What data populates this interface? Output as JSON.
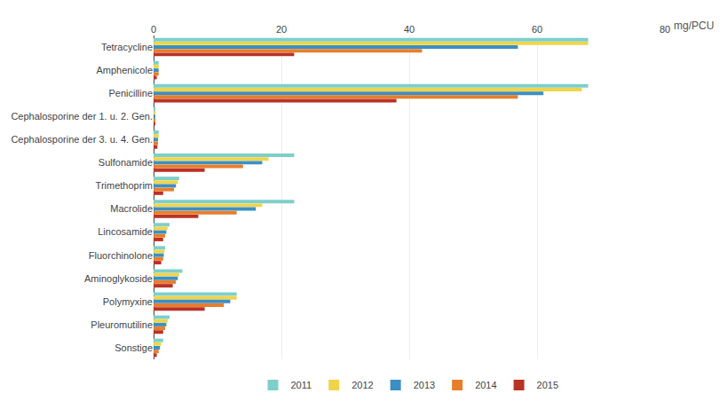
{
  "chart_data": {
    "type": "bar",
    "orientation": "horizontal",
    "xlabel": "mg/PCU",
    "categories": [
      "Tetracycline",
      "Amphenicole",
      "Penicilline",
      "Cephalosporine der 1. u. 2. Gen.",
      "Cephalosporine der 3. u. 4. Gen.",
      "Sulfonamide",
      "Trimethoprim",
      "Macrolide",
      "Lincosamide",
      "Fluorchinolone",
      "Aminoglykoside",
      "Polymyxine",
      "Pleuromutiline",
      "Sonstige"
    ],
    "series": [
      {
        "name": "2011",
        "color": "#7ecfc9",
        "values": [
          68,
          0.8,
          68,
          0.3,
          0.8,
          22,
          4.0,
          22,
          2.5,
          1.8,
          4.5,
          13,
          2.5,
          1.5
        ]
      },
      {
        "name": "2012",
        "color": "#f0d44a",
        "values": [
          68,
          0.8,
          67,
          0.3,
          0.8,
          18,
          3.8,
          17,
          2.2,
          1.7,
          4.0,
          13,
          2.2,
          1.2
        ]
      },
      {
        "name": "2013",
        "color": "#3b8fc4",
        "values": [
          57,
          0.8,
          61,
          0.2,
          0.7,
          17,
          3.5,
          16,
          2.0,
          1.6,
          3.8,
          12,
          2.0,
          1.0
        ]
      },
      {
        "name": "2014",
        "color": "#e87e2b",
        "values": [
          42,
          0.8,
          57,
          0.2,
          0.7,
          14,
          3.2,
          13,
          1.8,
          1.5,
          3.5,
          11,
          1.8,
          0.8
        ]
      },
      {
        "name": "2015",
        "color": "#b83226",
        "values": [
          22,
          0.5,
          38,
          0.2,
          0.6,
          8,
          1.5,
          7,
          1.5,
          1.2,
          3.0,
          8,
          1.5,
          0.5
        ]
      }
    ],
    "xlim": [
      0,
      80
    ],
    "xticks": [
      0,
      20,
      40,
      60,
      80
    ],
    "grid": true,
    "legend": "bottom"
  }
}
